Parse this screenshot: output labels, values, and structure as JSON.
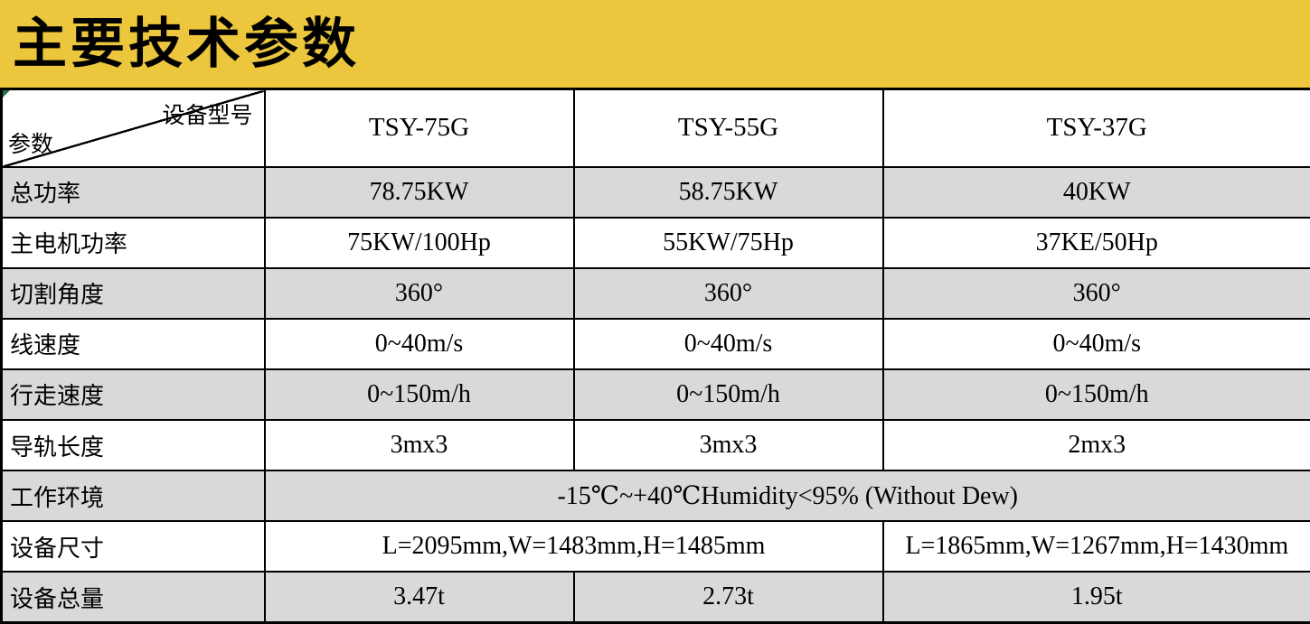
{
  "title": "主要技术参数",
  "colors": {
    "banner": "#ECC63C",
    "shaded_row": "#D9D9D9",
    "border": "#000000",
    "corner_marker": "#217346"
  },
  "table": {
    "corner": {
      "top_right_label": "设备型号",
      "bottom_left_label": "参数"
    },
    "model_headers": [
      "TSY-75G",
      "TSY-55G",
      "TSY-37G"
    ],
    "rows": [
      {
        "label": "总功率",
        "shaded": true,
        "cells": [
          {
            "text": "78.75KW",
            "span": 1
          },
          {
            "text": "58.75KW",
            "span": 1
          },
          {
            "text": "40KW",
            "span": 1
          }
        ]
      },
      {
        "label": "主电机功率",
        "shaded": false,
        "cells": [
          {
            "text": "75KW/100Hp",
            "span": 1
          },
          {
            "text": "55KW/75Hp",
            "span": 1
          },
          {
            "text": "37KE/50Hp",
            "span": 1
          }
        ]
      },
      {
        "label": "切割角度",
        "shaded": true,
        "cells": [
          {
            "text": "360°",
            "span": 1
          },
          {
            "text": "360°",
            "span": 1
          },
          {
            "text": "360°",
            "span": 1
          }
        ]
      },
      {
        "label": "线速度",
        "shaded": false,
        "cells": [
          {
            "text": "0~40m/s",
            "span": 1
          },
          {
            "text": "0~40m/s",
            "span": 1
          },
          {
            "text": "0~40m/s",
            "span": 1
          }
        ]
      },
      {
        "label": "行走速度",
        "shaded": true,
        "cells": [
          {
            "text": "0~150m/h",
            "span": 1
          },
          {
            "text": "0~150m/h",
            "span": 1
          },
          {
            "text": "0~150m/h",
            "span": 1
          }
        ]
      },
      {
        "label": "导轨长度",
        "shaded": false,
        "cells": [
          {
            "text": "3mx3",
            "span": 1
          },
          {
            "text": "3mx3",
            "span": 1
          },
          {
            "text": "2mx3",
            "span": 1
          }
        ]
      },
      {
        "label": "工作环境",
        "shaded": true,
        "cells": [
          {
            "text": "-15℃~+40℃Humidity<95% (Without Dew)",
            "span": 3
          }
        ]
      },
      {
        "label": "设备尺寸",
        "shaded": false,
        "cells": [
          {
            "text": "L=2095mm,W=1483mm,H=1485mm",
            "span": 2
          },
          {
            "text": "L=1865mm,W=1267mm,H=1430mm",
            "span": 1
          }
        ]
      },
      {
        "label": "设备总量",
        "shaded": true,
        "cells": [
          {
            "text": "3.47t",
            "span": 1
          },
          {
            "text": "2.73t",
            "span": 1
          },
          {
            "text": "1.95t",
            "span": 1
          }
        ]
      }
    ]
  }
}
